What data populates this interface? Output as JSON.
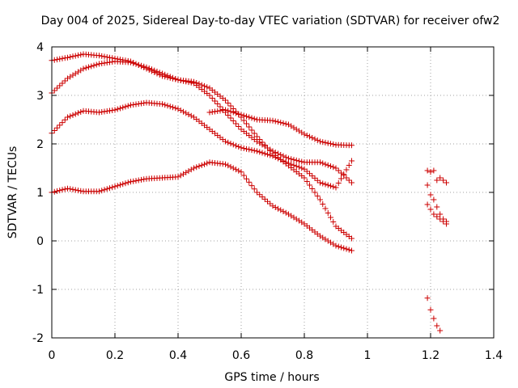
{
  "chart_data": {
    "type": "scatter",
    "title": "Day 004 of 2025, Sidereal Day-to-day VTEC variation (SDTVAR) for receiver ofw2",
    "xlabel": "GPS time / hours",
    "ylabel": "SDTVAR / TECUs",
    "xlim": [
      0,
      1.4
    ],
    "ylim": [
      -2,
      4
    ],
    "xticks": [
      0,
      0.2,
      0.4,
      0.6,
      0.8,
      1,
      1.2,
      1.4
    ],
    "xtick_labels": [
      "0",
      "0.2",
      "0.4",
      "0.6",
      "0.8",
      "1",
      "1.2",
      "1.4"
    ],
    "yticks": [
      -2,
      -1,
      0,
      1,
      2,
      3,
      4
    ],
    "ytick_labels": [
      "-2",
      "-1",
      "0",
      "1",
      "2",
      "3",
      "4"
    ],
    "grid": true,
    "marker": "+",
    "marker_color": "#cc0000",
    "series": [
      {
        "name": "series-1",
        "x": [
          0,
          0.05,
          0.1,
          0.15,
          0.2,
          0.25,
          0.3,
          0.35,
          0.4,
          0.45,
          0.5,
          0.55,
          0.6,
          0.65,
          0.7,
          0.75,
          0.8,
          0.85,
          0.9,
          0.95
        ],
        "y": [
          3.72,
          3.78,
          3.85,
          3.82,
          3.76,
          3.7,
          3.55,
          3.4,
          3.32,
          3.28,
          3.15,
          2.9,
          2.55,
          2.15,
          1.8,
          1.55,
          1.3,
          0.85,
          0.3,
          0.05
        ]
      },
      {
        "name": "series-2",
        "x": [
          0,
          0.05,
          0.1,
          0.15,
          0.2,
          0.25,
          0.3,
          0.35,
          0.4,
          0.45,
          0.5,
          0.55,
          0.6,
          0.65,
          0.7,
          0.75,
          0.8,
          0.85,
          0.9,
          0.95
        ],
        "y": [
          3.05,
          3.35,
          3.55,
          3.65,
          3.7,
          3.68,
          3.58,
          3.45,
          3.32,
          3.25,
          3.0,
          2.65,
          2.3,
          2.05,
          1.85,
          1.7,
          1.62,
          1.62,
          1.5,
          1.2
        ]
      },
      {
        "name": "series-3",
        "x": [
          0,
          0.05,
          0.1,
          0.15,
          0.2,
          0.25,
          0.3,
          0.35,
          0.4,
          0.45,
          0.5,
          0.55,
          0.6,
          0.65,
          0.7,
          0.75,
          0.8,
          0.85,
          0.9,
          0.95
        ],
        "y": [
          2.22,
          2.55,
          2.68,
          2.65,
          2.7,
          2.8,
          2.85,
          2.82,
          2.72,
          2.55,
          2.3,
          2.05,
          1.92,
          1.85,
          1.75,
          1.6,
          1.48,
          1.2,
          1.1,
          1.65
        ]
      },
      {
        "name": "series-4",
        "x": [
          0,
          0.05,
          0.1,
          0.15,
          0.2,
          0.25,
          0.3,
          0.35,
          0.4,
          0.45,
          0.5,
          0.55,
          0.6,
          0.65,
          0.7,
          0.75,
          0.8,
          0.85,
          0.9,
          0.95
        ],
        "y": [
          1.0,
          1.08,
          1.02,
          1.02,
          1.12,
          1.22,
          1.28,
          1.3,
          1.32,
          1.5,
          1.62,
          1.58,
          1.42,
          1.0,
          0.72,
          0.55,
          0.35,
          0.1,
          -0.1,
          -0.2
        ]
      },
      {
        "name": "series-5",
        "x": [
          0.5,
          0.55,
          0.6,
          0.65,
          0.7,
          0.75,
          0.8,
          0.85,
          0.9,
          0.95
        ],
        "y": [
          2.65,
          2.7,
          2.6,
          2.5,
          2.48,
          2.4,
          2.2,
          2.05,
          1.98,
          1.97
        ]
      },
      {
        "name": "series-6",
        "x": [
          1.19,
          1.2,
          1.21,
          1.22,
          1.23,
          1.24,
          1.25,
          1.19,
          1.2,
          1.21,
          1.22,
          1.23,
          1.24,
          1.25,
          1.19,
          1.2,
          1.21,
          1.22,
          1.23,
          1.24,
          1.25,
          1.19,
          1.2,
          1.21,
          1.22,
          1.23
        ],
        "y": [
          1.45,
          1.42,
          1.45,
          1.25,
          1.3,
          1.25,
          1.2,
          1.15,
          0.95,
          0.85,
          0.7,
          0.55,
          0.45,
          0.4,
          0.75,
          0.65,
          0.55,
          0.5,
          0.45,
          0.4,
          0.35,
          -1.18,
          -1.42,
          -1.6,
          -1.75,
          -1.85
        ]
      }
    ]
  }
}
